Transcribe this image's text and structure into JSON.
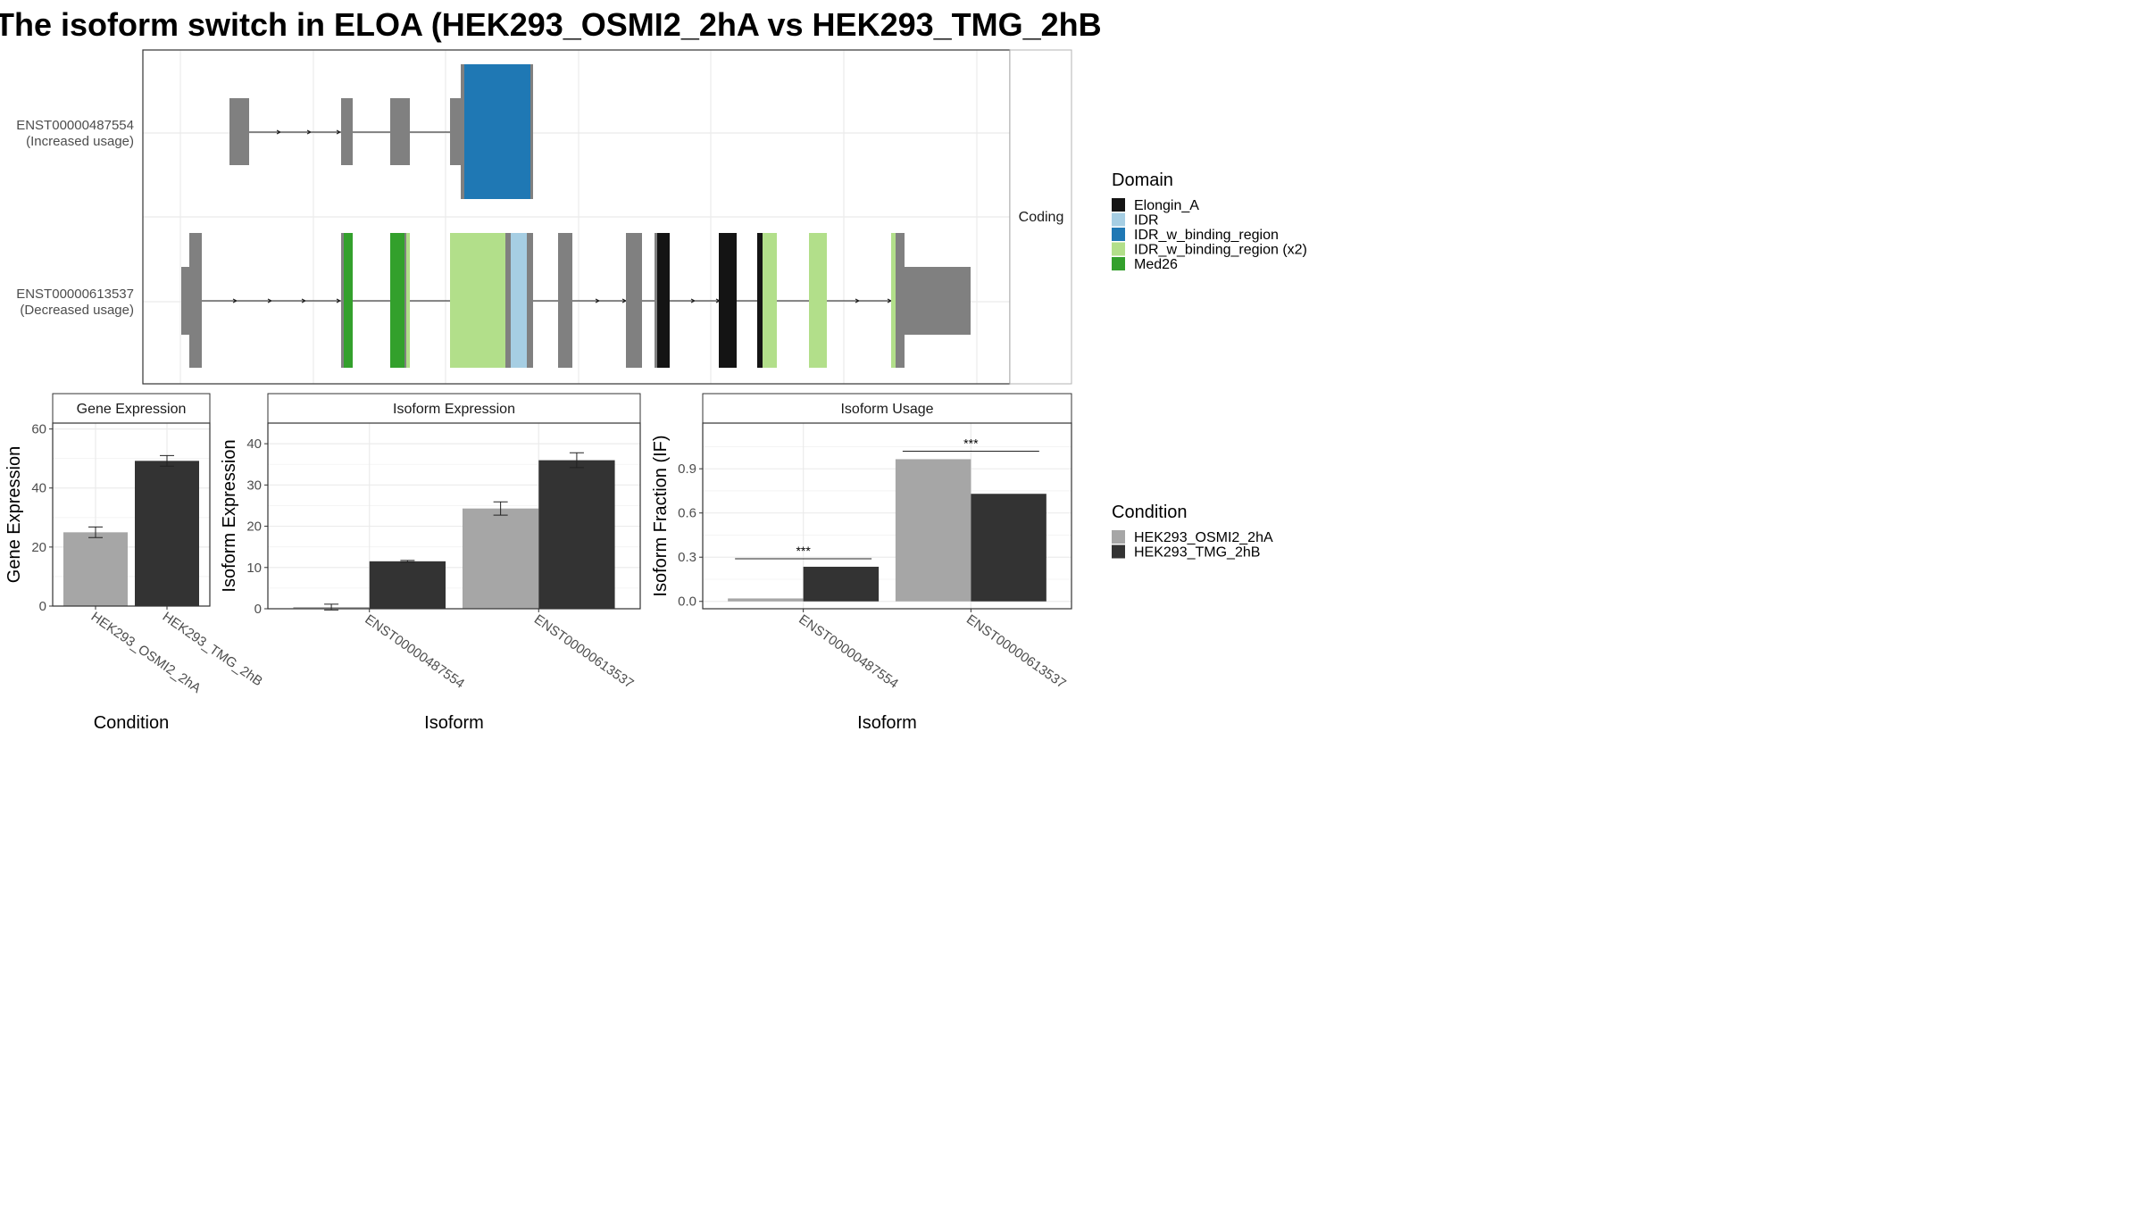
{
  "title": "The isoform switch in ELOA (HEK293_OSMI2_2hA vs HEK293_TMG_2hB",
  "colors": {
    "cond_a": "#a6a6a6",
    "cond_b": "#333333",
    "exon": "#808080",
    "Elongin_A": "#141414",
    "IDR": "#a6cee3",
    "IDR_w_binding_region": "#1f78b4",
    "IDR_w_binding_region_x2": "#b2df8a",
    "Med26": "#33a02c"
  },
  "chart_data": [
    {
      "type": "gene-structure",
      "strip": "Coding",
      "transcripts": [
        {
          "id": "ENST00000487554",
          "note": "(Increased usage)"
        },
        {
          "id": "ENST00000613537",
          "note": "(Decreased usage)"
        }
      ]
    },
    {
      "type": "bar",
      "strip": "Gene Expression",
      "xlabel": "Condition",
      "ylabel": "Gene Expression",
      "ylim": [
        0,
        62
      ],
      "yticks": [
        0,
        20,
        40,
        60
      ],
      "categories": [
        "HEK293_OSMI2_2hA",
        "HEK293_TMG_2hB"
      ],
      "values": [
        25,
        49.2
      ],
      "errors": [
        1.8,
        1.8
      ]
    },
    {
      "type": "bar",
      "strip": "Isoform Expression",
      "xlabel": "Isoform",
      "ylabel": "Isoform Expression",
      "ylim": [
        0,
        45
      ],
      "yticks": [
        0,
        10,
        20,
        30,
        40
      ],
      "categories": [
        "ENST00000487554",
        "ENST00000613537"
      ],
      "series": [
        {
          "name": "HEK293_OSMI2_2hA",
          "values": [
            0.4,
            24.3
          ],
          "errors": [
            0.7,
            1.6
          ]
        },
        {
          "name": "HEK293_TMG_2hB",
          "values": [
            11.5,
            36.0
          ],
          "errors": [
            0.2,
            1.8
          ]
        }
      ]
    },
    {
      "type": "bar",
      "strip": "Isoform Usage",
      "xlabel": "Isoform",
      "ylabel": "Isoform Fraction (IF)",
      "ylim": [
        -0.05,
        1.21
      ],
      "yticks": [
        0.0,
        0.3,
        0.6,
        0.9
      ],
      "categories": [
        "ENST00000487554",
        "ENST00000613537"
      ],
      "series": [
        {
          "name": "HEK293_OSMI2_2hA",
          "values": [
            0.02,
            0.965
          ]
        },
        {
          "name": "HEK293_TMG_2hB",
          "values": [
            0.235,
            0.73
          ]
        }
      ],
      "significance": [
        {
          "category": "ENST00000487554",
          "label": "***"
        },
        {
          "category": "ENST00000613537",
          "label": "***"
        }
      ]
    }
  ],
  "legends": {
    "domain": {
      "title": "Domain",
      "items": [
        "Elongin_A",
        "IDR",
        "IDR_w_binding_region",
        "IDR_w_binding_region (x2)",
        "Med26"
      ]
    },
    "condition": {
      "title": "Condition",
      "items": [
        "HEK293_OSMI2_2hA",
        "HEK293_TMG_2hB"
      ]
    }
  }
}
